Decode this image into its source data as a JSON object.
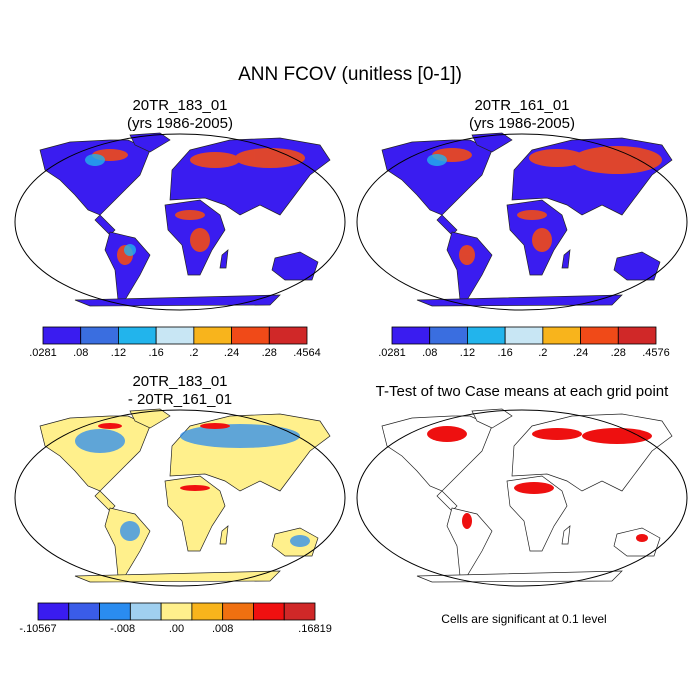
{
  "title": "ANN FCOV (unitless [0-1])",
  "panels": [
    {
      "title": "20TR_183_01",
      "subtitle": "(yrs 1986-2005)"
    },
    {
      "title": "20TR_161_01",
      "subtitle": "(yrs 1986-2005)"
    },
    {
      "title": "20TR_183_01",
      "subtitle": "- 20TR_161_01"
    },
    {
      "title": "T-Test of two Case means at each grid point"
    }
  ],
  "colorbars": [
    {
      "colors": [
        "#3a1cf0",
        "#3a6ee0",
        "#22b4ec",
        "#c8e6f4",
        "#f8b41c",
        "#f04a18",
        "#d02828"
      ],
      "labels": [
        ".0281",
        ".08",
        ".12",
        ".16",
        ".2",
        ".24",
        ".28",
        ".4564"
      ]
    },
    {
      "colors": [
        "#3a1cf0",
        "#3a6ee0",
        "#22b4ec",
        "#c8e6f4",
        "#f8b41c",
        "#f04a18",
        "#d02828"
      ],
      "labels": [
        ".0281",
        ".08",
        ".12",
        ".16",
        ".2",
        ".24",
        ".28",
        ".4576"
      ]
    },
    {
      "colors": [
        "#3a1cf0",
        "#3a5ce8",
        "#2a8cf0",
        "#a0d0f0",
        "#fff08c",
        "#f8b41c",
        "#f07010",
        "#f01010",
        "#d02828"
      ],
      "labels": [
        "-.10567",
        "-.008",
        ".00",
        ".008",
        ".16819"
      ]
    }
  ],
  "note": "Cells are significant at 0.1 level"
}
